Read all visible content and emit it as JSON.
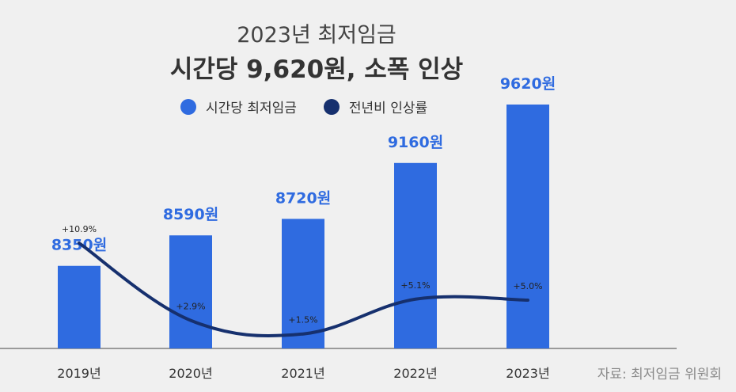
{
  "chart_data": {
    "type": "bar",
    "title": "2023년 최저임금",
    "subtitle": "시간당 9,620원, 소폭 인상",
    "categories": [
      "2019년",
      "2020년",
      "2021년",
      "2022년",
      "2023년"
    ],
    "series": [
      {
        "name": "시간당 최저임금",
        "type": "bar",
        "values": [
          8350,
          8590,
          8720,
          9160,
          9620
        ],
        "labels": [
          "8350원",
          "8590원",
          "8720원",
          "9160원",
          "9620원"
        ],
        "color": "#2f6be0"
      },
      {
        "name": "전년비 인상률",
        "type": "line",
        "values": [
          10.9,
          2.9,
          1.5,
          5.1,
          5.0
        ],
        "labels": [
          "+10.9%",
          "+2.9%",
          "+1.5%",
          "+5.1%",
          "+5.0%"
        ],
        "color": "#16306e"
      }
    ],
    "bar_ylim": [
      7700,
      9620
    ],
    "line_ylim": [
      0,
      15
    ],
    "legend": "top",
    "grid": false,
    "source": "자료: 최저임금 위원회"
  }
}
